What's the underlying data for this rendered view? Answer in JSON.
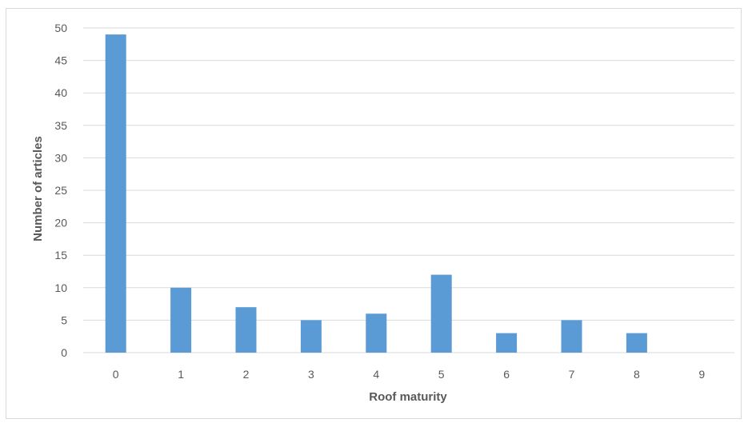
{
  "chart_data": {
    "type": "bar",
    "title": "",
    "xlabel": "Roof maturity",
    "ylabel": "Number of articles",
    "categories": [
      "0",
      "1",
      "2",
      "3",
      "4",
      "5",
      "6",
      "7",
      "8",
      "9"
    ],
    "values": [
      49,
      10,
      7,
      5,
      6,
      12,
      3,
      5,
      3,
      0
    ],
    "ylim": [
      0,
      50
    ],
    "yticks": [
      "0",
      "5",
      "10",
      "15",
      "20",
      "25",
      "30",
      "35",
      "40",
      "45",
      "50"
    ],
    "grid": "horizontal",
    "legend": "none",
    "colors": {
      "bar": "#5b9bd5",
      "grid": "#d9d9d9",
      "text": "#595959"
    }
  }
}
